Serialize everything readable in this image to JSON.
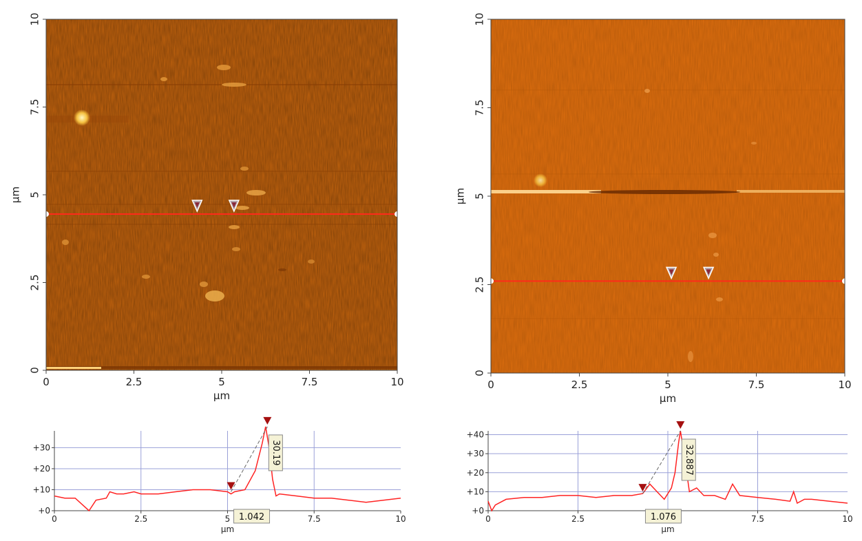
{
  "colors": {
    "left_surface": "#c4640e",
    "right_surface": "#de6e0e",
    "scan_line": "#ff2a1a",
    "profile_line": "#ff2222",
    "grid": "#9aa0d8",
    "marker": "#a51010",
    "callout_bg": "#f5f2d6"
  },
  "chart_data": [
    {
      "type": "heatmap",
      "name": "left-afm-image",
      "xlabel": "µm",
      "ylabel": "µm",
      "xlim": [
        0,
        10
      ],
      "ylim": [
        0,
        10
      ],
      "x_ticks": [
        "0",
        "2.5",
        "5",
        "7.5",
        "10"
      ],
      "y_ticks": [
        "0",
        "2.5",
        "5",
        "7.5",
        "10"
      ],
      "scan_line_y": 4.45,
      "cursor_markers_x": [
        4.3,
        5.35
      ]
    },
    {
      "type": "heatmap",
      "name": "right-afm-image",
      "xlabel": "µm",
      "ylabel": "µm",
      "xlim": [
        0,
        10
      ],
      "ylim": [
        0,
        10
      ],
      "x_ticks": [
        "0",
        "2.5",
        "5",
        "7.5",
        "10"
      ],
      "y_ticks": [
        "0",
        "2.5",
        "5",
        "7.5",
        "10"
      ],
      "scan_line_y": 2.6,
      "cursor_markers_x": [
        5.1,
        6.15
      ]
    },
    {
      "type": "line",
      "name": "left-height-profile",
      "xlabel": "µm",
      "ylabel": "",
      "xlim": [
        0,
        10
      ],
      "ylim": [
        0,
        38
      ],
      "x_ticks": [
        "0",
        "2.5",
        "5",
        "7.5",
        "10"
      ],
      "y_ticks": [
        "+0",
        "+10",
        "+20",
        "+30"
      ],
      "x": [
        0,
        0.3,
        0.6,
        0.8,
        1.0,
        1.2,
        1.5,
        1.6,
        1.8,
        2.0,
        2.3,
        2.5,
        3.0,
        3.5,
        4.0,
        4.5,
        5.0,
        5.1,
        5.2,
        5.5,
        5.8,
        6.0,
        6.1,
        6.2,
        6.3,
        6.4,
        6.5,
        7.0,
        7.5,
        8.0,
        8.5,
        9.0,
        9.5,
        10.0
      ],
      "y": [
        7,
        6,
        6,
        3,
        0,
        5,
        6,
        9,
        8,
        8,
        9,
        8,
        8,
        9,
        10,
        10,
        9,
        8,
        9,
        10,
        19,
        32,
        40,
        30,
        15,
        7,
        8,
        7,
        6,
        6,
        5,
        4,
        5,
        6
      ],
      "markers": [
        {
          "x": 5.1,
          "y": 9
        },
        {
          "x": 6.15,
          "y": 40
        }
      ],
      "callouts": {
        "dx": "1.042",
        "dy": "30.19"
      }
    },
    {
      "type": "line",
      "name": "right-height-profile",
      "xlabel": "µm",
      "ylabel": "",
      "xlim": [
        0,
        10
      ],
      "ylim": [
        0,
        42
      ],
      "x_ticks": [
        "0",
        "2.5",
        "5",
        "7.5",
        "10"
      ],
      "y_ticks": [
        "+0",
        "+10",
        "+20",
        "+30",
        "+40"
      ],
      "x": [
        0,
        0.1,
        0.2,
        0.5,
        1.0,
        1.5,
        2.0,
        2.5,
        3.0,
        3.5,
        4.0,
        4.3,
        4.5,
        4.7,
        4.9,
        5.1,
        5.2,
        5.3,
        5.35,
        5.45,
        5.6,
        5.8,
        6.0,
        6.3,
        6.6,
        6.8,
        7.0,
        7.5,
        8.0,
        8.4,
        8.5,
        8.6,
        8.8,
        9.0,
        9.5,
        10.0
      ],
      "y": [
        5,
        0,
        3,
        6,
        7,
        7,
        8,
        8,
        7,
        8,
        8,
        9,
        14,
        10,
        6,
        12,
        20,
        36,
        42,
        30,
        10,
        12,
        8,
        8,
        6,
        14,
        8,
        7,
        6,
        5,
        10,
        4,
        6,
        6,
        5,
        4
      ],
      "markers": [
        {
          "x": 4.3,
          "y": 9
        },
        {
          "x": 5.35,
          "y": 42
        }
      ],
      "callouts": {
        "dx": "1.076",
        "dy": "32.887"
      }
    }
  ]
}
